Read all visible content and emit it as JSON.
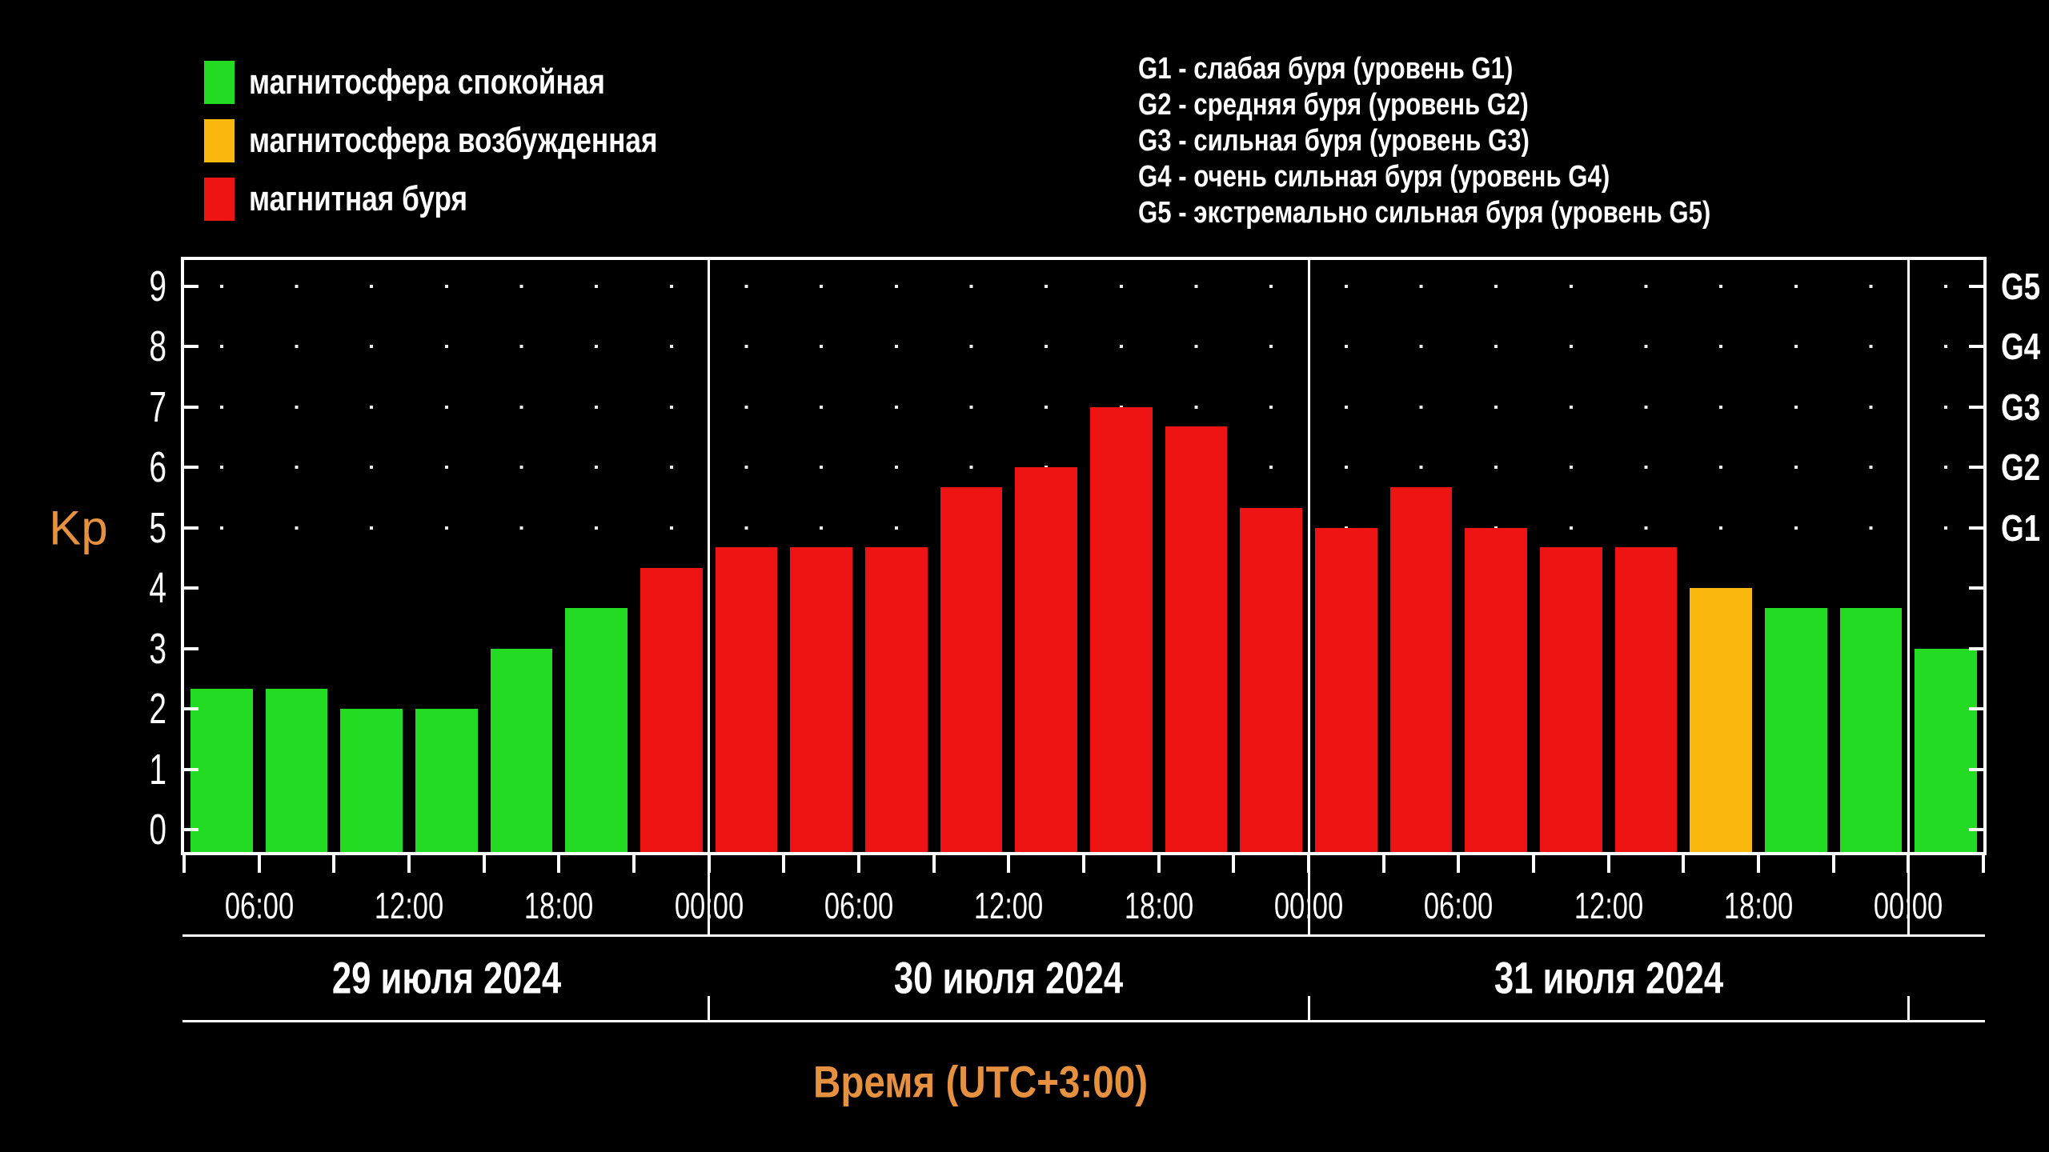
{
  "colors": {
    "quiet": "#22DB22",
    "excited": "#FCB90D",
    "storm": "#EE1414",
    "accent_orange": "#E69140",
    "axis": "#FFFFFF",
    "background": "#000000"
  },
  "legend": {
    "items": [
      {
        "label": "магнитосфера спокойная",
        "state": "quiet"
      },
      {
        "label": "магнитосфера возбужденная",
        "state": "excited"
      },
      {
        "label": "магнитная буря",
        "state": "storm"
      }
    ]
  },
  "storm_scale": {
    "lines": [
      "G1 - слабая буря (уровень G1)",
      "G2 - средняя буря (уровень G2)",
      "G3 - сильная буря (уровень G3)",
      "G4 - очень сильная буря (уровень G4)",
      "G5 - экстремально сильная буря (уровень G5)"
    ]
  },
  "chart_data": {
    "type": "bar",
    "title": "",
    "ylabel": "Kp",
    "xlabel": "Время (UTC+3:00)",
    "ylim": [
      0,
      9.4
    ],
    "yticks": [
      0,
      1,
      2,
      3,
      4,
      5,
      6,
      7,
      8,
      9
    ],
    "grid": "dotted rows at Kp 5-9, one dot per bar center",
    "right_axis": [
      {
        "label": "G5",
        "kp": 9
      },
      {
        "label": "G4",
        "kp": 8
      },
      {
        "label": "G3",
        "kp": 7
      },
      {
        "label": "G2",
        "kp": 6
      },
      {
        "label": "G1",
        "kp": 5
      }
    ],
    "slot_hours": 3,
    "time_labels": [
      {
        "slot": 1,
        "label": "06:00"
      },
      {
        "slot": 3,
        "label": "12:00"
      },
      {
        "slot": 5,
        "label": "18:00"
      },
      {
        "slot": 7,
        "label": "00:00"
      },
      {
        "slot": 9,
        "label": "06:00"
      },
      {
        "slot": 11,
        "label": "12:00"
      },
      {
        "slot": 13,
        "label": "18:00"
      },
      {
        "slot": 15,
        "label": "00:00"
      },
      {
        "slot": 17,
        "label": "06:00"
      },
      {
        "slot": 19,
        "label": "12:00"
      },
      {
        "slot": 21,
        "label": "18:00"
      },
      {
        "slot": 23,
        "label": "00:00"
      }
    ],
    "day_separators_slots": [
      7,
      15,
      23
    ],
    "days": [
      {
        "date": "29 июля 2024",
        "from_slot": 0,
        "to_slot": 7
      },
      {
        "date": "30 июля 2024",
        "from_slot": 7,
        "to_slot": 15
      },
      {
        "date": "31 июля 2024",
        "from_slot": 15,
        "to_slot": 23
      }
    ],
    "bars": [
      {
        "slot": 0,
        "kp": 2.33,
        "state": "quiet"
      },
      {
        "slot": 1,
        "kp": 2.33,
        "state": "quiet"
      },
      {
        "slot": 2,
        "kp": 2.0,
        "state": "quiet"
      },
      {
        "slot": 3,
        "kp": 2.0,
        "state": "quiet"
      },
      {
        "slot": 4,
        "kp": 3.0,
        "state": "quiet"
      },
      {
        "slot": 5,
        "kp": 3.67,
        "state": "quiet"
      },
      {
        "slot": 6,
        "kp": 4.33,
        "state": "storm"
      },
      {
        "slot": 7,
        "kp": 4.67,
        "state": "storm"
      },
      {
        "slot": 8,
        "kp": 4.67,
        "state": "storm"
      },
      {
        "slot": 9,
        "kp": 4.67,
        "state": "storm"
      },
      {
        "slot": 10,
        "kp": 5.67,
        "state": "storm"
      },
      {
        "slot": 11,
        "kp": 6.0,
        "state": "storm"
      },
      {
        "slot": 12,
        "kp": 7.0,
        "state": "storm"
      },
      {
        "slot": 13,
        "kp": 6.67,
        "state": "storm"
      },
      {
        "slot": 14,
        "kp": 5.33,
        "state": "storm"
      },
      {
        "slot": 15,
        "kp": 5.0,
        "state": "storm"
      },
      {
        "slot": 16,
        "kp": 5.67,
        "state": "storm"
      },
      {
        "slot": 17,
        "kp": 5.0,
        "state": "storm"
      },
      {
        "slot": 18,
        "kp": 4.67,
        "state": "storm"
      },
      {
        "slot": 19,
        "kp": 4.67,
        "state": "storm"
      },
      {
        "slot": 20,
        "kp": 4.0,
        "state": "excited"
      },
      {
        "slot": 21,
        "kp": 3.67,
        "state": "quiet"
      },
      {
        "slot": 22,
        "kp": 3.67,
        "state": "quiet"
      },
      {
        "slot": 23,
        "kp": 3.0,
        "state": "quiet"
      }
    ]
  }
}
